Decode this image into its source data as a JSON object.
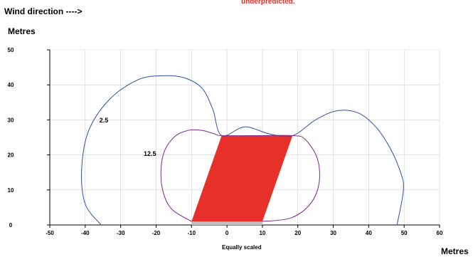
{
  "header": {
    "wind_label": "Wind direction ---->",
    "note": "underpredicted.",
    "y_unit_label": "Metres",
    "x_unit_label": "Metres",
    "scale_note": "Equally scaled"
  },
  "colors": {
    "building": "#e8302a",
    "base_strip": "#c0c0c0",
    "contour_outer": "#3050a0",
    "contour_inner": "#7a2a8a",
    "grid": "#d0d0d0"
  },
  "chart_data": {
    "type": "contour",
    "title": "",
    "xlabel": "Metres",
    "ylabel": "Metres",
    "xlim": [
      -50,
      60
    ],
    "ylim": [
      0,
      50
    ],
    "x_ticks": [
      -50,
      -40,
      -30,
      -20,
      -10,
      0,
      10,
      20,
      30,
      40,
      50,
      60
    ],
    "y_ticks": [
      0,
      10,
      20,
      30,
      40,
      50
    ],
    "grid": true,
    "building": {
      "shape": "parallelogram",
      "points": [
        [
          -10,
          1
        ],
        [
          10,
          1
        ],
        [
          18.5,
          25.5
        ],
        [
          -1.5,
          25.5
        ]
      ]
    },
    "base_strip": {
      "x": [
        -10,
        10
      ],
      "y": [
        0,
        1
      ]
    },
    "contours": [
      {
        "label": "2.5",
        "label_at": [
          -36,
          29.3
        ],
        "points": [
          [
            -35.5,
            0
          ],
          [
            -40,
            6
          ],
          [
            -41,
            16
          ],
          [
            -39,
            27
          ],
          [
            -33,
            36
          ],
          [
            -25,
            41.5
          ],
          [
            -18,
            42.6
          ],
          [
            -12,
            42
          ],
          [
            -7,
            39
          ],
          [
            -4,
            33
          ],
          [
            -1.5,
            25.5
          ],
          [
            5,
            28
          ],
          [
            12,
            26
          ],
          [
            18.5,
            25.5
          ],
          [
            25,
            30
          ],
          [
            31,
            32.6
          ],
          [
            37,
            32
          ],
          [
            42,
            28
          ],
          [
            46,
            22
          ],
          [
            49,
            15
          ],
          [
            49.8,
            10
          ],
          [
            48,
            0
          ]
        ]
      },
      {
        "label": "12.5",
        "label_at": [
          -23.5,
          19.7
        ],
        "points": [
          [
            -10,
            1
          ],
          [
            -16,
            5
          ],
          [
            -18.5,
            12
          ],
          [
            -18,
            20
          ],
          [
            -15,
            25
          ],
          [
            -11,
            27
          ],
          [
            -7,
            27
          ],
          [
            -3.5,
            26
          ],
          [
            -1.5,
            25.5
          ],
          [
            8,
            25.5
          ],
          [
            18.5,
            25.5
          ],
          [
            22,
            24.5
          ],
          [
            25.5,
            19
          ],
          [
            26,
            12
          ],
          [
            23.5,
            6
          ],
          [
            18,
            2
          ],
          [
            10,
            1
          ]
        ]
      }
    ]
  }
}
